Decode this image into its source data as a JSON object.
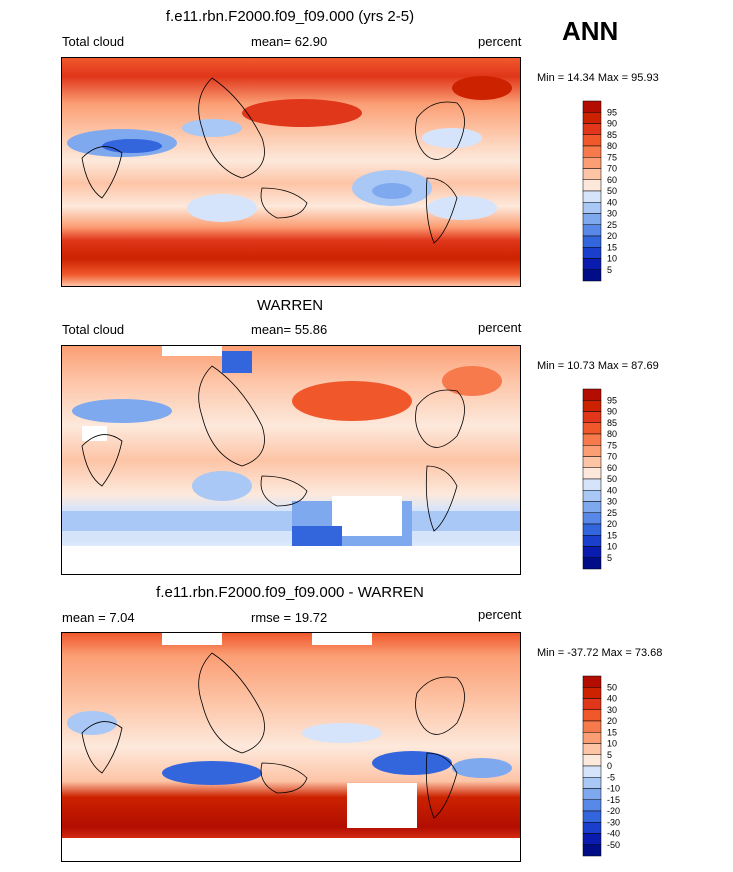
{
  "header": {
    "ann_label": "ANN"
  },
  "panels": [
    {
      "title": "f.e11.rbn.F2000.f09_f09.000 (yrs 2-5)",
      "left_label": "Total cloud",
      "center_label": "mean=  62.90",
      "right_label": "percent",
      "minmax": "Min =  14.34 Max =  95.93",
      "levels": [
        "95",
        "90",
        "85",
        "80",
        "75",
        "70",
        "60",
        "50",
        "40",
        "30",
        "25",
        "20",
        "15",
        "10",
        "5"
      ],
      "colors": [
        "#b20d00",
        "#cc2200",
        "#e0361a",
        "#f0582c",
        "#f77a4d",
        "#fb9e74",
        "#fdc4a6",
        "#fde9dc",
        "#d6e4fb",
        "#a9c8f5",
        "#7fa9ef",
        "#5888e8",
        "#3366dd",
        "#1a3fcc",
        "#0a1cb0",
        "#000d86"
      ]
    },
    {
      "title": "WARREN",
      "left_label": "Total cloud",
      "center_label": "mean=  55.86",
      "right_label": "percent",
      "minmax": "Min =  10.73 Max =  87.69",
      "levels": [
        "95",
        "90",
        "85",
        "80",
        "75",
        "70",
        "60",
        "50",
        "40",
        "30",
        "25",
        "20",
        "15",
        "10",
        "5"
      ],
      "colors": [
        "#b20d00",
        "#cc2200",
        "#e0361a",
        "#f0582c",
        "#f77a4d",
        "#fb9e74",
        "#fdc4a6",
        "#fde9dc",
        "#d6e4fb",
        "#a9c8f5",
        "#7fa9ef",
        "#5888e8",
        "#3366dd",
        "#1a3fcc",
        "#0a1cb0",
        "#000d86"
      ]
    },
    {
      "title": "f.e11.rbn.F2000.f09_f09.000 - WARREN",
      "left_label": "mean =   7.04",
      "center_label": "rmse =  19.72",
      "right_label": "percent",
      "minmax": "Min = -37.72 Max =  73.68",
      "levels": [
        "50",
        "40",
        "30",
        "20",
        "15",
        "10",
        "5",
        "0",
        "-5",
        "-10",
        "-15",
        "-20",
        "-30",
        "-40",
        "-50"
      ],
      "colors": [
        "#b20d00",
        "#cc2200",
        "#e0361a",
        "#f0582c",
        "#f77a4d",
        "#fb9e74",
        "#fdc4a6",
        "#fde9dc",
        "#d6e4fb",
        "#a9c8f5",
        "#7fa9ef",
        "#5888e8",
        "#3366dd",
        "#1a3fcc",
        "#0a1cb0",
        "#000d86"
      ]
    }
  ]
}
